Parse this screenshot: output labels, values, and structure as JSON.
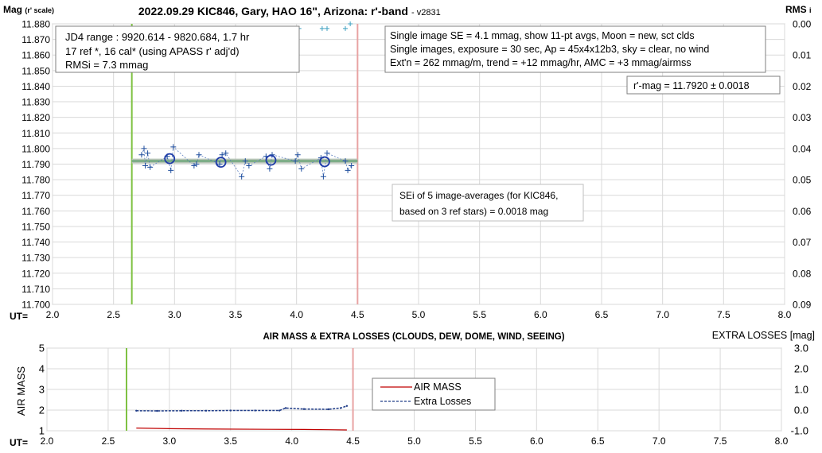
{
  "upper": {
    "title": "2022.09.29 KIC846, Gary, HAO 16\", Arizona: r'-band",
    "version": "- v2831",
    "y_axis_label": "Mag",
    "y_axis_label_small": "(r' scale)",
    "rms_label": "RMS",
    "rms_label_small": "i",
    "x_axis_label": "UT=",
    "info_left": [
      "JD4 range : 9920.614 - 9820.684,  1.7  hr",
      "17 ref *, 16 cal* (using APASS r' adj'd)",
      "RMSi = 7.3 mmag"
    ],
    "info_right": [
      "Single image SE = 4.1 mmag, show  11-pt avgs, Moon = new, sct clds",
      "Single images, exposure = 30 sec, Ap = 45x4x12b3, sky = clear, no wind",
      "Ext'n = 262 mmag/m, trend = +12  mmag/hr, AMC = +3 mmag/airmss"
    ],
    "rmag_box": "r'-mag = 11.7920 ± 0.0018",
    "sei_box": [
      "SEi of 5 image-averages (for KIC846,",
      "based on 3 ref stars) = 0.0018 mag"
    ]
  },
  "lower": {
    "title": "AIR MASS & EXTRA LOSSES (CLOUDS, DEW, DOME, WIND, SEEING)",
    "right_title": "EXTRA LOSSES [mag]",
    "y_axis_label": "AIR MASS",
    "x_axis_label": "UT=",
    "legend": [
      "AIR MASS",
      "Extra Losses"
    ]
  },
  "chart_data": [
    {
      "type": "scatter",
      "title": "2022.09.29 KIC846, Gary, HAO 16\", Arizona: r'-band",
      "xlabel": "UT=",
      "ylabel": "Mag (r' scale)",
      "y2label": "RMS i",
      "xlim": [
        2.0,
        8.0
      ],
      "ylim": [
        11.88,
        11.7
      ],
      "y2lim": [
        0.0,
        0.09
      ],
      "x_ticks": [
        "2.0",
        "2.5",
        "3.0",
        "3.5",
        "4.0",
        "4.5",
        "5.0",
        "5.5",
        "6.0",
        "6.5",
        "7.0",
        "7.5",
        "8.0"
      ],
      "y_ticks": [
        "11.700",
        "11.710",
        "11.720",
        "11.730",
        "11.740",
        "11.750",
        "11.760",
        "11.770",
        "11.780",
        "11.790",
        "11.800",
        "11.810",
        "11.820",
        "11.830",
        "11.840",
        "11.850",
        "11.860",
        "11.870",
        "11.880"
      ],
      "y2_ticks": [
        "0.09",
        "0.08",
        "0.07",
        "0.06",
        "0.05",
        "0.04",
        "0.03",
        "0.02",
        "0.01",
        "0.00"
      ],
      "vlines": [
        {
          "x": 2.65,
          "color": "#7ec242"
        },
        {
          "x": 4.5,
          "color": "#e8a3a3"
        }
      ],
      "mean_mag": 11.792,
      "mean_line_x": [
        2.65,
        4.5
      ],
      "series": [
        {
          "marker": "plus",
          "x": [
            2.73,
            2.75,
            2.76,
            2.78,
            2.8,
            2.94,
            2.97,
            2.99,
            3.16,
            3.18,
            3.2,
            3.37,
            3.39,
            3.42,
            3.55,
            3.58,
            3.61,
            3.75,
            3.78,
            3.8,
            3.99,
            4.01,
            4.04,
            4.2,
            4.22,
            4.25,
            4.4,
            4.42,
            4.45
          ],
          "y": [
            11.796,
            11.8,
            11.789,
            11.797,
            11.788,
            11.795,
            11.786,
            11.801,
            11.789,
            11.79,
            11.796,
            11.79,
            11.796,
            11.797,
            11.782,
            11.792,
            11.789,
            11.795,
            11.787,
            11.796,
            11.792,
            11.796,
            11.787,
            11.794,
            11.782,
            11.797,
            11.792,
            11.786,
            11.789
          ]
        },
        {
          "marker": "circle",
          "x": [
            2.96,
            3.38,
            3.79,
            4.23
          ],
          "y": [
            11.7935,
            11.7912,
            11.7925,
            11.7915
          ]
        },
        {
          "marker": "plus-small",
          "axis": "y2",
          "x": [
            2.73,
            2.76,
            2.79,
            2.94,
            2.98,
            3.16,
            3.2,
            3.37,
            3.41,
            3.57,
            3.61,
            3.77,
            3.81,
            3.98,
            4.02,
            4.21,
            4.25,
            4.4,
            4.44
          ],
          "y": [
            0.002,
            0.0015,
            0.0015,
            0.0015,
            0.0015,
            0.002,
            0.0015,
            0.002,
            0.0015,
            0.002,
            0.0015,
            0.0015,
            0.0015,
            0.0015,
            0.0015,
            0.0015,
            0.0015,
            0.0015,
            0.0
          ]
        }
      ]
    },
    {
      "type": "line",
      "title": "AIR MASS & EXTRA LOSSES (CLOUDS, DEW, DOME, WIND, SEEING)",
      "xlabel": "UT=",
      "ylabel": "AIR MASS",
      "y2label": "EXTRA LOSSES [mag]",
      "xlim": [
        2.0,
        8.0
      ],
      "ylim": [
        1,
        5
      ],
      "y2lim": [
        3.0,
        -1.0
      ],
      "x_ticks": [
        "2.0",
        "2.5",
        "3.0",
        "3.5",
        "4.0",
        "4.5",
        "5.0",
        "5.5",
        "6.0",
        "6.5",
        "7.0",
        "7.5",
        "8.0"
      ],
      "y_ticks": [
        "1",
        "2",
        "3",
        "4",
        "5"
      ],
      "y2_ticks": [
        "-1.0",
        "0.0",
        "1.0",
        "2.0",
        "3.0"
      ],
      "vlines": [
        {
          "x": 2.65,
          "color": "#7ec242"
        },
        {
          "x": 4.5,
          "color": "#e8a3a3"
        }
      ],
      "legend_position": "center",
      "series": [
        {
          "name": "AIR MASS",
          "color": "#c00000",
          "x": [
            2.73,
            3.0,
            3.4,
            3.8,
            4.1,
            4.3,
            4.45
          ],
          "y": [
            1.13,
            1.1,
            1.08,
            1.07,
            1.06,
            1.05,
            1.04
          ]
        },
        {
          "name": "Extra Losses",
          "color": "#1f3c88",
          "axis": "y2",
          "x": [
            2.73,
            2.9,
            3.1,
            3.3,
            3.5,
            3.7,
            3.9,
            3.95,
            4.1,
            4.3,
            4.4,
            4.45
          ],
          "y": [
            -0.03,
            -0.04,
            -0.03,
            -0.03,
            -0.02,
            -0.02,
            -0.02,
            0.1,
            0.05,
            0.04,
            0.1,
            0.2
          ]
        }
      ]
    }
  ]
}
